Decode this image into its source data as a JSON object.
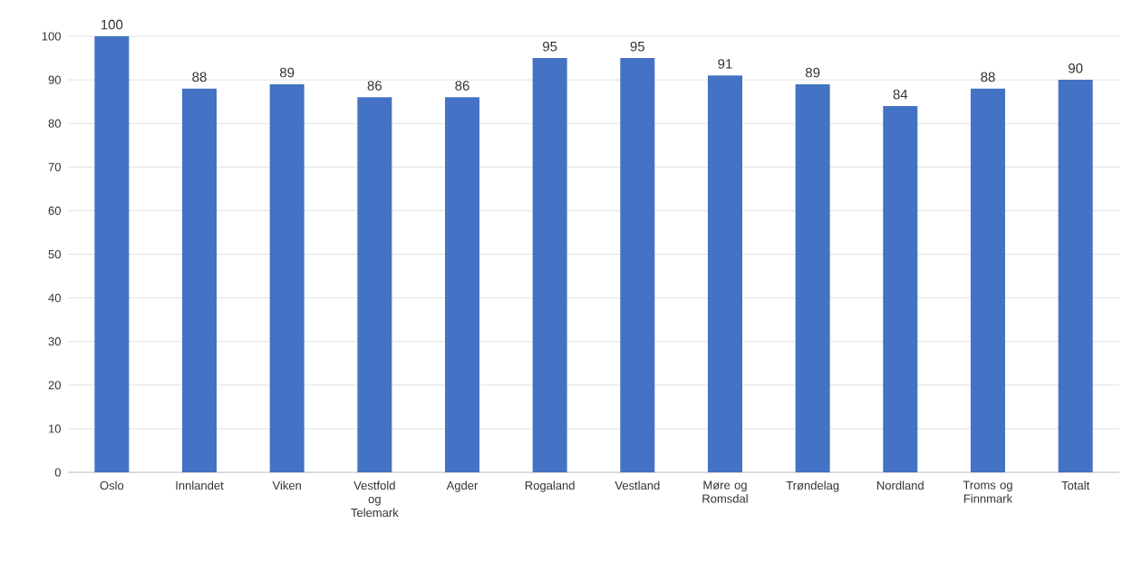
{
  "chart_data": {
    "type": "bar",
    "categories": [
      "Oslo",
      "Innlandet",
      "Viken",
      "Vestfold og Telemark",
      "Agder",
      "Rogaland",
      "Vestland",
      "Møre og Romsdal",
      "Trøndelag",
      "Nordland",
      "Troms og Finnmark",
      "Totalt"
    ],
    "values": [
      100,
      88,
      89,
      86,
      86,
      95,
      95,
      91,
      89,
      84,
      88,
      90
    ],
    "color": "#4472c4",
    "ylim": [
      0,
      100
    ],
    "yticks": [
      0,
      10,
      20,
      30,
      40,
      50,
      60,
      70,
      80,
      90,
      100
    ],
    "grid": "y",
    "data_labels": true
  }
}
